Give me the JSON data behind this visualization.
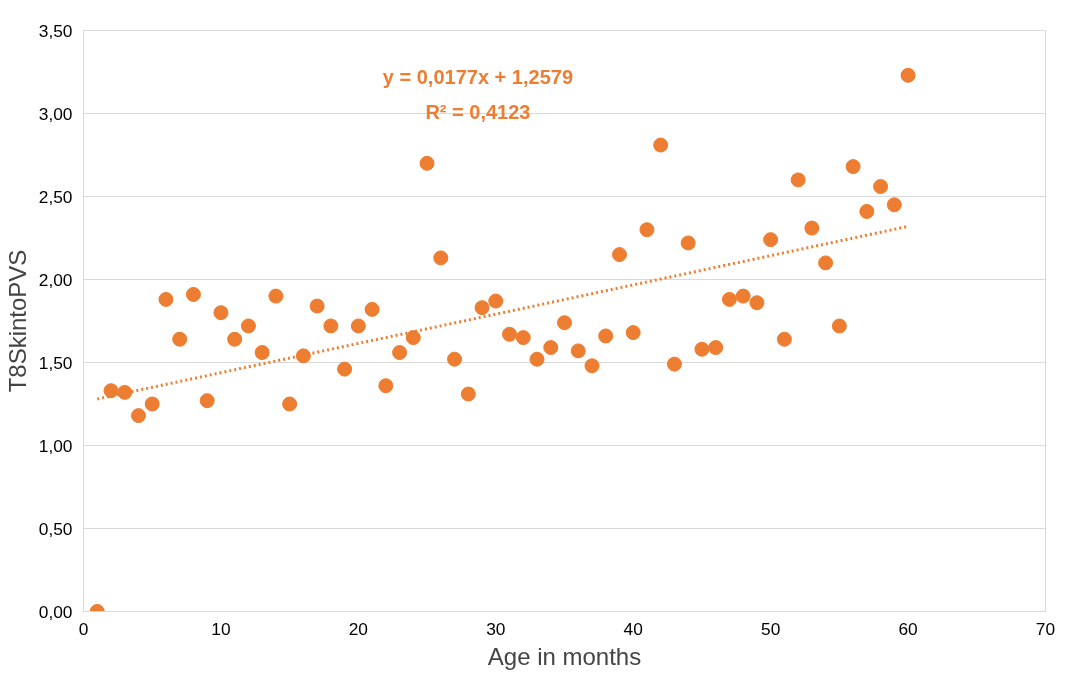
{
  "chart_data": {
    "type": "scatter",
    "xlabel": "Age in months",
    "ylabel": "T8SkintoPVS",
    "xlim": [
      0,
      70
    ],
    "xticks": [
      0,
      10,
      20,
      30,
      40,
      50,
      60,
      70
    ],
    "ylim": [
      0,
      3.5
    ],
    "yticks": [
      {
        "value": 0,
        "label": "0,00"
      },
      {
        "value": 0.5,
        "label": "0,50"
      },
      {
        "value": 1.0,
        "label": "1,00"
      },
      {
        "value": 1.5,
        "label": "1,50"
      },
      {
        "value": 2.0,
        "label": "2,00"
      },
      {
        "value": 2.5,
        "label": "2,50"
      },
      {
        "value": 3.0,
        "label": "3,00"
      },
      {
        "value": 3.5,
        "label": "3,50"
      }
    ],
    "grid": "y",
    "annotations": [
      "y = 0,0177x + 1,2579",
      "R² = 0,4123"
    ],
    "series": [
      {
        "marker": "circle",
        "color": "#ed7d31",
        "x": [
          1,
          2,
          3,
          4,
          5,
          6,
          7,
          8,
          9,
          10,
          11,
          12,
          13,
          14,
          15,
          16,
          17,
          18,
          19,
          20,
          21,
          22,
          23,
          24,
          25,
          26,
          27,
          28,
          29,
          30,
          31,
          32,
          33,
          34,
          35,
          36,
          37,
          38,
          39,
          40,
          41,
          42,
          43,
          44,
          45,
          46,
          47,
          48,
          49,
          50,
          51,
          52,
          53,
          54,
          55,
          56,
          57,
          58,
          59,
          60
        ],
        "values": [
          0.0,
          1.33,
          1.32,
          1.18,
          1.25,
          1.88,
          1.64,
          1.91,
          1.27,
          1.8,
          1.64,
          1.72,
          1.56,
          1.9,
          1.25,
          1.54,
          1.84,
          1.72,
          1.46,
          1.72,
          1.82,
          1.36,
          1.56,
          1.65,
          2.7,
          2.13,
          1.52,
          1.31,
          1.83,
          1.87,
          1.67,
          1.65,
          1.52,
          1.59,
          1.74,
          1.57,
          1.48,
          1.66,
          2.15,
          1.68,
          2.3,
          2.81,
          1.49,
          2.22,
          1.58,
          1.59,
          1.88,
          1.9,
          1.86,
          2.24,
          1.64,
          2.6,
          2.31,
          2.1,
          1.72,
          2.68,
          2.41,
          2.56,
          2.45,
          3.23
        ]
      },
      {
        "type": "line",
        "color": "#ed7d31",
        "line_style": "dotted",
        "x": [
          1,
          60
        ],
        "values": [
          1.28,
          2.32
        ]
      }
    ]
  }
}
